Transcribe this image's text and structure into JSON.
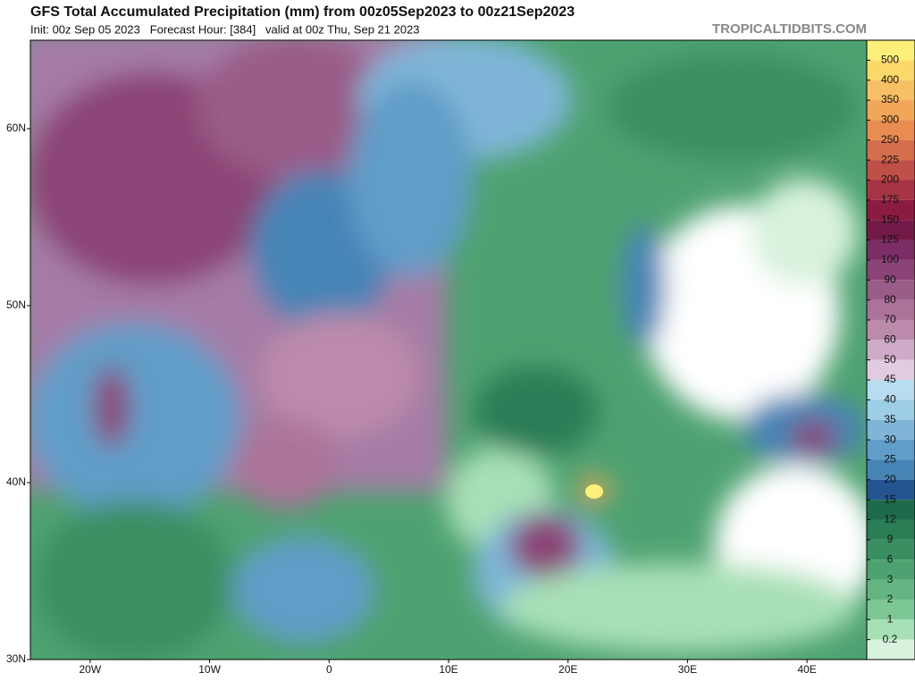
{
  "header": {
    "title": "GFS Total Accumulated Precipitation (mm) from 00z05Sep2023 to 00z21Sep2023",
    "subtitle": "Init: 00z Sep 05 2023   Forecast Hour: [384]   valid at 00z Thu, Sep 21 2023",
    "watermark": "TROPICALTIDBITS.COM"
  },
  "map": {
    "xlim": [
      -25,
      45
    ],
    "ylim": [
      30,
      65
    ],
    "lat_ticks": [
      {
        "value": 60,
        "label": "60N"
      },
      {
        "value": 50,
        "label": "50N"
      },
      {
        "value": 40,
        "label": "40N"
      },
      {
        "value": 30,
        "label": "30N"
      }
    ],
    "lon_ticks": [
      {
        "value": -20,
        "label": "20W"
      },
      {
        "value": -10,
        "label": "10W"
      },
      0,
      {
        "value": 10,
        "label": "10E"
      },
      {
        "value": 20,
        "label": "20E"
      },
      {
        "value": 30,
        "label": "30E"
      },
      {
        "value": 40,
        "label": "40E"
      }
    ]
  },
  "colorbar": {
    "levels": [
      500,
      400,
      350,
      300,
      250,
      225,
      200,
      175,
      150,
      125,
      100,
      90,
      80,
      70,
      60,
      50,
      45,
      40,
      35,
      30,
      25,
      20,
      15,
      12,
      9,
      6,
      3,
      2,
      1,
      0.2
    ],
    "colors": [
      "#fdf07a",
      "#fbd86a",
      "#f7c064",
      "#f1a65a",
      "#e88c52",
      "#d46e4c",
      "#bf5048",
      "#a53444",
      "#8a1c40",
      "#741a48",
      "#7c2d66",
      "#8b4476",
      "#9a5c88",
      "#ab7399",
      "#bc8aaa",
      "#ceabc8",
      "#e2cbe0",
      "#b8dcf0",
      "#9ecde6",
      "#7fb6d8",
      "#609dc8",
      "#4784b6",
      "#245591",
      "#1d6b4a",
      "#2b7d56",
      "#3a8f62",
      "#4ea271",
      "#64b581",
      "#7cc793",
      "#a8e0b5",
      "#d8f2dd"
    ]
  }
}
